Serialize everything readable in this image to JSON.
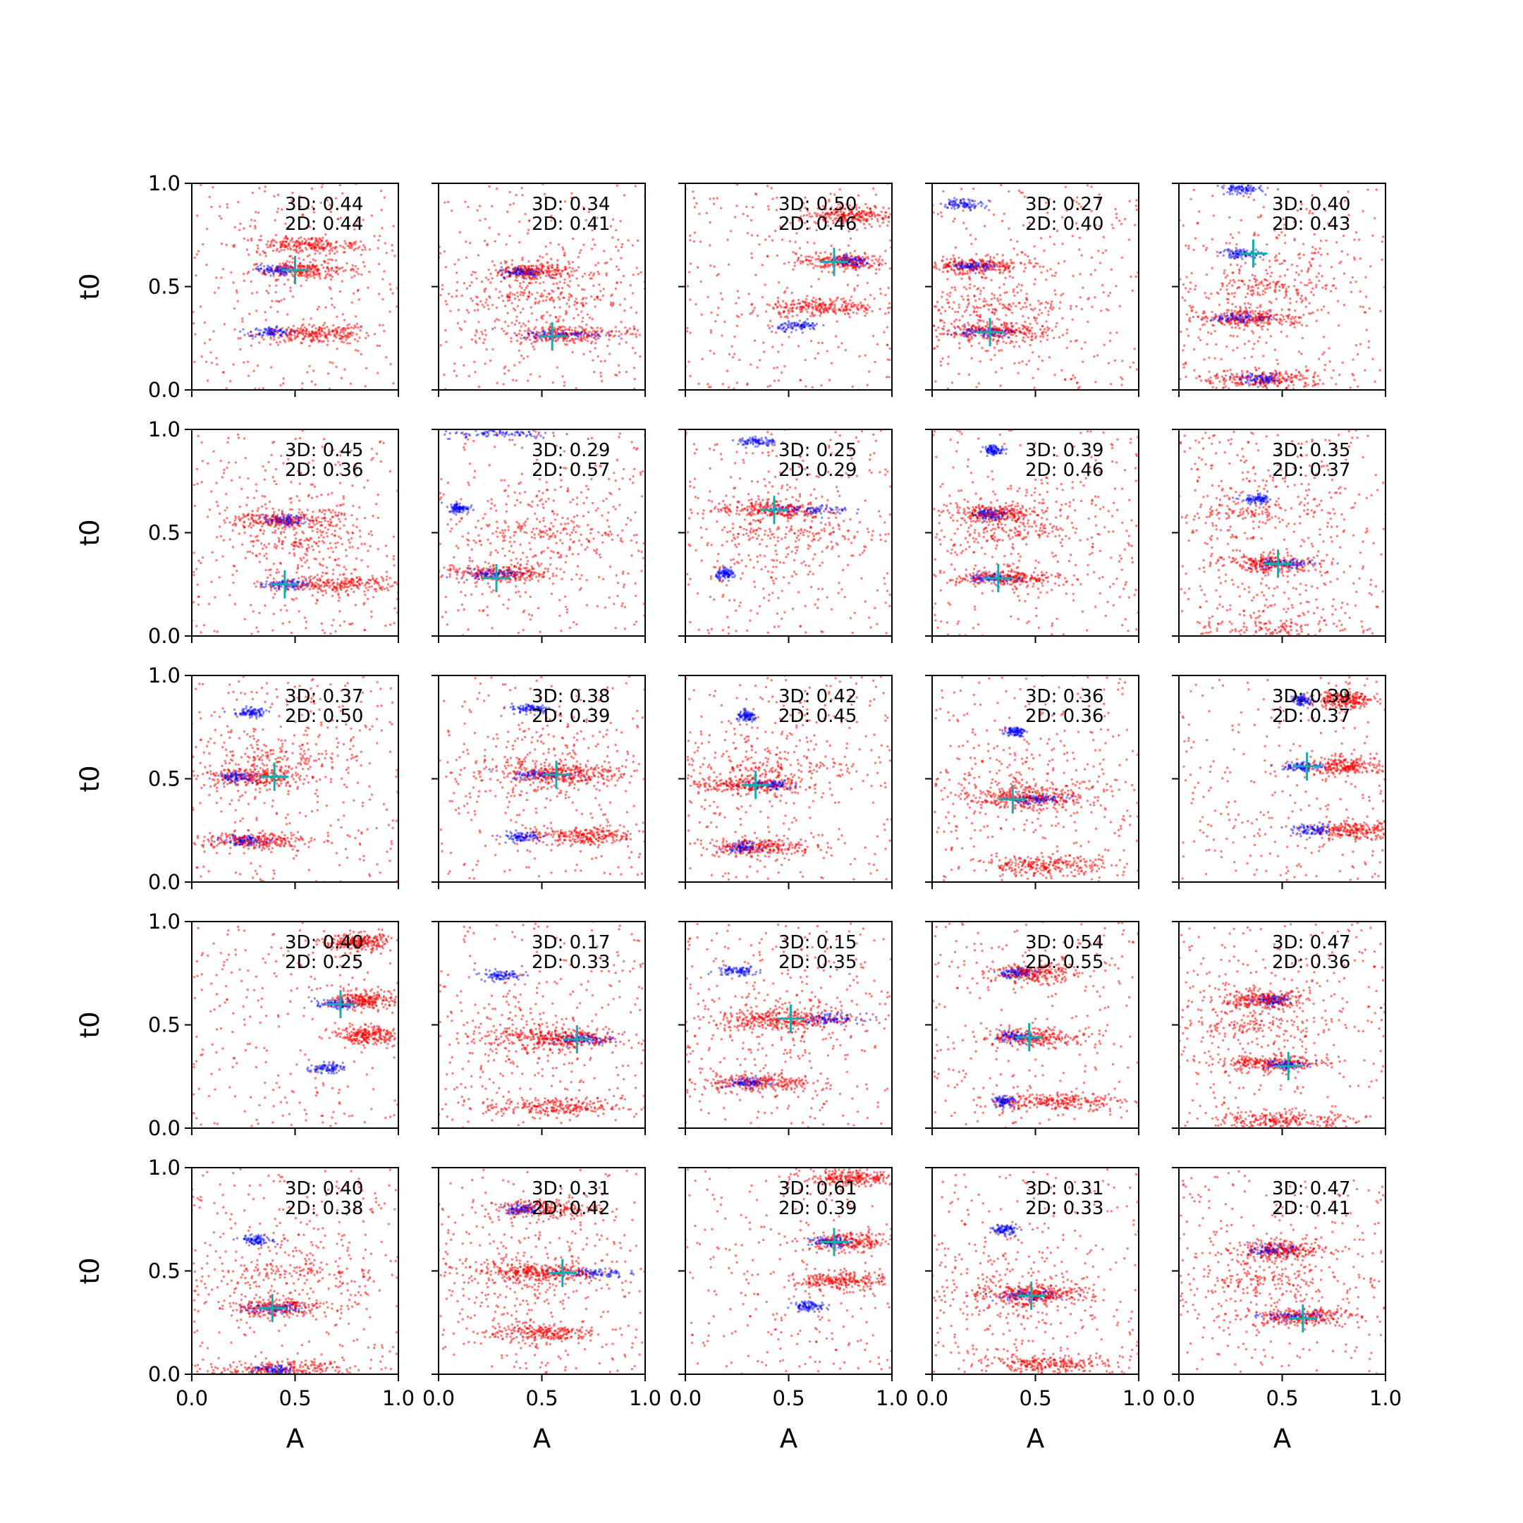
{
  "figure": {
    "xlabel": "A",
    "ylabel": "t0",
    "xticks": [
      "0.0",
      "0.5",
      "1.0"
    ],
    "yticks": [
      "0.0",
      "0.5",
      "1.0"
    ],
    "colors": {
      "pred": "#ff0000",
      "true": "#0000ff",
      "marker": "#1fa8a8",
      "axis": "#000000"
    }
  },
  "chart_data": {
    "type": "scatter",
    "description_of_marks": "red = sampled points, blue = high-score points, cross = reference",
    "xlim": [
      0,
      1
    ],
    "ylim": [
      0,
      1
    ],
    "grid": false,
    "panels": [
      {
        "label3d": "3D: 0.44",
        "label2d": "2D: 0.44",
        "cross": [
          0.5,
          0.58
        ],
        "bands": [
          0.58,
          0.28
        ],
        "blue": [
          [
            0.38,
            0.28,
            0.1
          ],
          [
            0.4,
            0.58,
            0.08
          ]
        ],
        "red": [
          [
            0.55,
            0.58,
            0.25
          ],
          [
            0.6,
            0.27,
            0.25
          ],
          [
            0.55,
            0.7,
            0.3
          ]
        ]
      },
      {
        "label3d": "3D: 0.34",
        "label2d": "2D: 0.41",
        "cross": [
          0.55,
          0.26
        ],
        "bands": [
          0.57,
          0.27
        ],
        "blue": [
          [
            0.4,
            0.57,
            0.1
          ],
          [
            0.6,
            0.27,
            0.2
          ]
        ],
        "red": [
          [
            0.45,
            0.57,
            0.2
          ],
          [
            0.6,
            0.27,
            0.3
          ],
          [
            0.5,
            0.45,
            0.35
          ]
        ]
      },
      {
        "label3d": "3D: 0.50",
        "label2d": "2D: 0.46",
        "cross": [
          0.72,
          0.62
        ],
        "bands": [
          0.62,
          0.31
        ],
        "blue": [
          [
            0.55,
            0.31,
            0.1
          ],
          [
            0.8,
            0.62,
            0.1
          ]
        ],
        "red": [
          [
            0.75,
            0.62,
            0.2
          ],
          [
            0.8,
            0.85,
            0.2
          ],
          [
            0.65,
            0.4,
            0.25
          ]
        ]
      },
      {
        "label3d": "3D: 0.27",
        "label2d": "2D: 0.40",
        "cross": [
          0.28,
          0.28
        ],
        "bands": [
          0.9,
          0.6,
          0.28
        ],
        "blue": [
          [
            0.15,
            0.9,
            0.1
          ],
          [
            0.2,
            0.6,
            0.1
          ],
          [
            0.25,
            0.28,
            0.15
          ]
        ],
        "red": [
          [
            0.2,
            0.6,
            0.25
          ],
          [
            0.3,
            0.28,
            0.25
          ],
          [
            0.3,
            0.4,
            0.35
          ]
        ]
      },
      {
        "label3d": "3D: 0.40",
        "label2d": "2D: 0.43",
        "cross": [
          0.36,
          0.66
        ],
        "bands": [
          0.97,
          0.66,
          0.35,
          0.05
        ],
        "blue": [
          [
            0.3,
            0.97,
            0.1
          ],
          [
            0.3,
            0.66,
            0.1
          ],
          [
            0.3,
            0.35,
            0.15
          ],
          [
            0.4,
            0.05,
            0.1
          ]
        ],
        "red": [
          [
            0.35,
            0.35,
            0.25
          ],
          [
            0.4,
            0.05,
            0.3
          ],
          [
            0.45,
            0.5,
            0.35
          ]
        ]
      },
      {
        "label3d": "3D: 0.45",
        "label2d": "2D: 0.36",
        "cross": [
          0.45,
          0.25
        ],
        "bands": [
          0.56,
          0.25
        ],
        "blue": [
          [
            0.45,
            0.56,
            0.1
          ],
          [
            0.45,
            0.25,
            0.1
          ]
        ],
        "red": [
          [
            0.45,
            0.56,
            0.25
          ],
          [
            0.7,
            0.25,
            0.3
          ],
          [
            0.55,
            0.45,
            0.35
          ]
        ]
      },
      {
        "label3d": "3D: 0.29",
        "label2d": "2D: 0.57",
        "cross": [
          0.28,
          0.28
        ],
        "bands": [
          0.98,
          0.62,
          0.3
        ],
        "blue": [
          [
            0.3,
            0.98,
            0.3
          ],
          [
            0.1,
            0.62,
            0.05
          ],
          [
            0.25,
            0.3,
            0.15
          ]
        ],
        "red": [
          [
            0.3,
            0.3,
            0.25
          ],
          [
            0.5,
            0.5,
            0.4
          ]
        ]
      },
      {
        "label3d": "3D: 0.25",
        "label2d": "2D: 0.29",
        "cross": [
          0.43,
          0.61
        ],
        "bands": [
          0.94,
          0.61,
          0.3
        ],
        "blue": [
          [
            0.35,
            0.94,
            0.1
          ],
          [
            0.6,
            0.61,
            0.2
          ],
          [
            0.2,
            0.3,
            0.05
          ]
        ],
        "red": [
          [
            0.4,
            0.61,
            0.25
          ],
          [
            0.5,
            0.5,
            0.4
          ]
        ]
      },
      {
        "label3d": "3D: 0.39",
        "label2d": "2D: 0.46",
        "cross": [
          0.32,
          0.28
        ],
        "bands": [
          0.9,
          0.59,
          0.28
        ],
        "blue": [
          [
            0.3,
            0.9,
            0.05
          ],
          [
            0.28,
            0.59,
            0.08
          ],
          [
            0.3,
            0.28,
            0.12
          ]
        ],
        "red": [
          [
            0.3,
            0.59,
            0.2
          ],
          [
            0.35,
            0.28,
            0.25
          ],
          [
            0.4,
            0.5,
            0.4
          ]
        ]
      },
      {
        "label3d": "3D: 0.35",
        "label2d": "2D: 0.37",
        "cross": [
          0.48,
          0.35
        ],
        "bands": [
          0.66,
          0.35,
          0.04
        ],
        "blue": [
          [
            0.38,
            0.66,
            0.08
          ],
          [
            0.5,
            0.35,
            0.15
          ]
        ],
        "red": [
          [
            0.45,
            0.35,
            0.25
          ],
          [
            0.45,
            0.04,
            0.35
          ],
          [
            0.4,
            0.6,
            0.4
          ]
        ]
      },
      {
        "label3d": "3D: 0.37",
        "label2d": "2D: 0.50",
        "cross": [
          0.4,
          0.51
        ],
        "bands": [
          0.82,
          0.51,
          0.2
        ],
        "blue": [
          [
            0.28,
            0.82,
            0.08
          ],
          [
            0.22,
            0.51,
            0.1
          ],
          [
            0.25,
            0.2,
            0.1
          ]
        ],
        "red": [
          [
            0.3,
            0.51,
            0.25
          ],
          [
            0.3,
            0.2,
            0.25
          ],
          [
            0.4,
            0.6,
            0.4
          ]
        ]
      },
      {
        "label3d": "3D: 0.38",
        "label2d": "2D: 0.39",
        "cross": [
          0.57,
          0.52
        ],
        "bands": [
          0.84,
          0.52,
          0.22
        ],
        "blue": [
          [
            0.45,
            0.84,
            0.1
          ],
          [
            0.5,
            0.52,
            0.15
          ],
          [
            0.4,
            0.22,
            0.1
          ]
        ],
        "red": [
          [
            0.6,
            0.52,
            0.25
          ],
          [
            0.7,
            0.22,
            0.25
          ],
          [
            0.5,
            0.55,
            0.4
          ]
        ]
      },
      {
        "label3d": "3D: 0.42",
        "label2d": "2D: 0.45",
        "cross": [
          0.34,
          0.47
        ],
        "bands": [
          0.8,
          0.47,
          0.17
        ],
        "blue": [
          [
            0.3,
            0.8,
            0.05
          ],
          [
            0.4,
            0.47,
            0.12
          ],
          [
            0.28,
            0.17,
            0.08
          ]
        ],
        "red": [
          [
            0.3,
            0.47,
            0.25
          ],
          [
            0.35,
            0.17,
            0.25
          ],
          [
            0.4,
            0.55,
            0.4
          ]
        ]
      },
      {
        "label3d": "3D: 0.36",
        "label2d": "2D: 0.36",
        "cross": [
          0.39,
          0.4
        ],
        "bands": [
          0.73,
          0.4,
          0.08
        ],
        "blue": [
          [
            0.4,
            0.73,
            0.05
          ],
          [
            0.5,
            0.4,
            0.15
          ]
        ],
        "red": [
          [
            0.45,
            0.4,
            0.25
          ],
          [
            0.55,
            0.08,
            0.3
          ],
          [
            0.45,
            0.45,
            0.4
          ]
        ]
      },
      {
        "label3d": "3D: 0.39",
        "label2d": "2D: 0.37",
        "cross": [
          0.62,
          0.56
        ],
        "bands": [
          0.88,
          0.56,
          0.25
        ],
        "blue": [
          [
            0.6,
            0.88,
            0.05
          ],
          [
            0.6,
            0.56,
            0.1
          ],
          [
            0.65,
            0.25,
            0.1
          ]
        ],
        "red": [
          [
            0.8,
            0.56,
            0.2
          ],
          [
            0.85,
            0.25,
            0.2
          ],
          [
            0.8,
            0.88,
            0.15
          ]
        ]
      },
      {
        "label3d": "3D: 0.40",
        "label2d": "2D: 0.25",
        "cross": [
          0.72,
          0.6
        ],
        "bands": [
          0.6,
          0.29
        ],
        "blue": [
          [
            0.7,
            0.6,
            0.1
          ],
          [
            0.65,
            0.29,
            0.08
          ]
        ],
        "red": [
          [
            0.85,
            0.62,
            0.15
          ],
          [
            0.8,
            0.9,
            0.15
          ],
          [
            0.85,
            0.45,
            0.15
          ]
        ]
      },
      {
        "label3d": "3D: 0.17",
        "label2d": "2D: 0.33",
        "cross": [
          0.67,
          0.43
        ],
        "bands": [
          0.74,
          0.43,
          0.1
        ],
        "blue": [
          [
            0.3,
            0.74,
            0.1
          ],
          [
            0.7,
            0.43,
            0.15
          ]
        ],
        "red": [
          [
            0.6,
            0.43,
            0.25
          ],
          [
            0.55,
            0.1,
            0.3
          ],
          [
            0.45,
            0.45,
            0.4
          ]
        ]
      },
      {
        "label3d": "3D: 0.15",
        "label2d": "2D: 0.35",
        "cross": [
          0.51,
          0.53
        ],
        "bands": [
          0.76,
          0.53,
          0.22
        ],
        "blue": [
          [
            0.25,
            0.76,
            0.1
          ],
          [
            0.7,
            0.53,
            0.15
          ],
          [
            0.3,
            0.22,
            0.1
          ]
        ],
        "red": [
          [
            0.5,
            0.53,
            0.3
          ],
          [
            0.35,
            0.22,
            0.25
          ],
          [
            0.45,
            0.5,
            0.4
          ]
        ]
      },
      {
        "label3d": "3D: 0.54",
        "label2d": "2D: 0.55",
        "cross": [
          0.47,
          0.44
        ],
        "bands": [
          0.75,
          0.44,
          0.13
        ],
        "blue": [
          [
            0.4,
            0.75,
            0.1
          ],
          [
            0.4,
            0.44,
            0.1
          ],
          [
            0.35,
            0.13,
            0.05
          ]
        ],
        "red": [
          [
            0.5,
            0.75,
            0.2
          ],
          [
            0.5,
            0.44,
            0.25
          ],
          [
            0.6,
            0.13,
            0.3
          ]
        ]
      },
      {
        "label3d": "3D: 0.47",
        "label2d": "2D: 0.36",
        "cross": [
          0.53,
          0.3
        ],
        "bands": [
          0.62,
          0.31,
          0.04
        ],
        "blue": [
          [
            0.45,
            0.62,
            0.08
          ],
          [
            0.5,
            0.31,
            0.1
          ]
        ],
        "red": [
          [
            0.4,
            0.62,
            0.2
          ],
          [
            0.45,
            0.31,
            0.25
          ],
          [
            0.5,
            0.04,
            0.3
          ],
          [
            0.35,
            0.5,
            0.4
          ]
        ]
      },
      {
        "label3d": "3D: 0.40",
        "label2d": "2D: 0.38",
        "cross": [
          0.39,
          0.32
        ],
        "bands": [
          0.65,
          0.32,
          0.02
        ],
        "blue": [
          [
            0.32,
            0.65,
            0.08
          ],
          [
            0.4,
            0.32,
            0.15
          ],
          [
            0.4,
            0.02,
            0.1
          ]
        ],
        "red": [
          [
            0.4,
            0.32,
            0.25
          ],
          [
            0.4,
            0.02,
            0.3
          ],
          [
            0.45,
            0.5,
            0.4
          ]
        ]
      },
      {
        "label3d": "3D: 0.31",
        "label2d": "2D: 0.42",
        "cross": [
          0.6,
          0.49
        ],
        "bands": [
          0.8,
          0.49,
          0.2
        ],
        "blue": [
          [
            0.4,
            0.8,
            0.08
          ],
          [
            0.75,
            0.49,
            0.15
          ]
        ],
        "red": [
          [
            0.5,
            0.49,
            0.25
          ],
          [
            0.5,
            0.8,
            0.25
          ],
          [
            0.5,
            0.2,
            0.25
          ],
          [
            0.45,
            0.5,
            0.4
          ]
        ]
      },
      {
        "label3d": "3D: 0.61",
        "label2d": "2D: 0.39",
        "cross": [
          0.72,
          0.64
        ],
        "bands": [
          0.64,
          0.33
        ],
        "blue": [
          [
            0.7,
            0.64,
            0.1
          ],
          [
            0.6,
            0.33,
            0.08
          ]
        ],
        "red": [
          [
            0.8,
            0.64,
            0.2
          ],
          [
            0.8,
            0.95,
            0.2
          ],
          [
            0.75,
            0.45,
            0.2
          ]
        ]
      },
      {
        "label3d": "3D: 0.31",
        "label2d": "2D: 0.33",
        "cross": [
          0.48,
          0.38
        ],
        "bands": [
          0.7,
          0.38,
          0.05
        ],
        "blue": [
          [
            0.35,
            0.7,
            0.06
          ],
          [
            0.45,
            0.38,
            0.15
          ]
        ],
        "red": [
          [
            0.5,
            0.38,
            0.25
          ],
          [
            0.55,
            0.05,
            0.3
          ],
          [
            0.4,
            0.4,
            0.4
          ]
        ]
      },
      {
        "label3d": "3D: 0.47",
        "label2d": "2D: 0.41",
        "cross": [
          0.6,
          0.27
        ],
        "bands": [
          0.6,
          0.28
        ],
        "blue": [
          [
            0.45,
            0.6,
            0.1
          ],
          [
            0.55,
            0.28,
            0.15
          ]
        ],
        "red": [
          [
            0.5,
            0.6,
            0.2
          ],
          [
            0.6,
            0.28,
            0.25
          ],
          [
            0.4,
            0.45,
            0.4
          ]
        ]
      }
    ]
  }
}
